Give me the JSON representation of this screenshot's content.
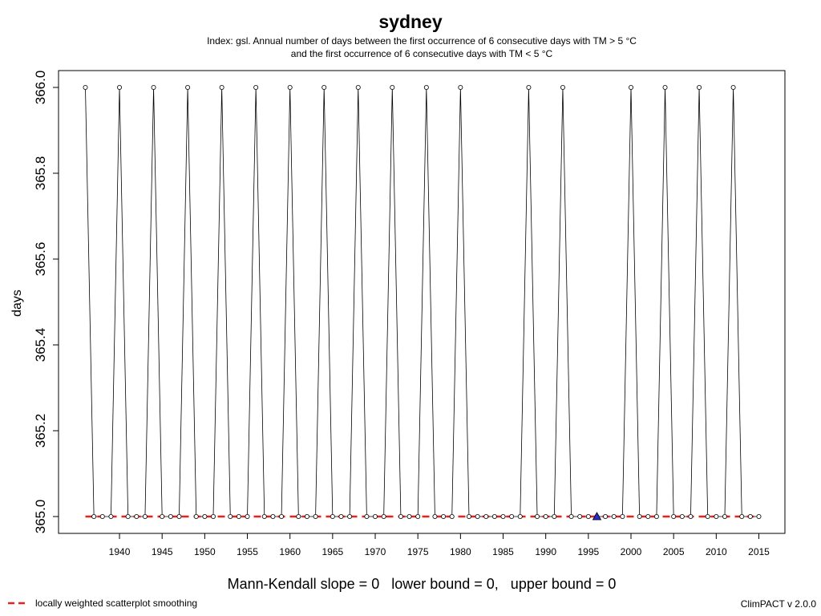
{
  "header": {
    "title": "sydney",
    "subtitle_line1": "Index: gsl. Annual number of days between the first occurrence of 6 consecutive days with TM > 5 °C",
    "subtitle_line2": "and the first occurrence of 6 consecutive days with TM < 5 °C"
  },
  "footer": {
    "stat_text": "Mann-Kendall slope = 0   lower bound = 0,   upper bound = 0",
    "legend_label": "locally weighted scatterplot smoothing",
    "version": "ClimPACT v 2.0.0"
  },
  "colors": {
    "series_line": "#000000",
    "smooth_line": "#e8231d",
    "marker_fill": "#2a2ad0"
  },
  "chart_data": {
    "type": "line",
    "title": "sydney",
    "xlabel": "",
    "ylabel": "days",
    "xlim": [
      1936,
      2015
    ],
    "ylim": [
      365.0,
      366.0
    ],
    "x_ticks": [
      1940,
      1945,
      1950,
      1955,
      1960,
      1965,
      1970,
      1975,
      1980,
      1985,
      1990,
      1995,
      2000,
      2005,
      2010,
      2015
    ],
    "y_ticks": [
      "365.0",
      "365.2",
      "365.4",
      "365.6",
      "365.8",
      "366.0"
    ],
    "grid": false,
    "legend": "bottom-left",
    "series": [
      {
        "name": "gsl",
        "x": [
          1936,
          1937,
          1938,
          1939,
          1940,
          1941,
          1942,
          1943,
          1944,
          1945,
          1946,
          1947,
          1948,
          1949,
          1950,
          1951,
          1952,
          1953,
          1954,
          1955,
          1956,
          1957,
          1958,
          1959,
          1960,
          1961,
          1962,
          1963,
          1964,
          1965,
          1966,
          1967,
          1968,
          1969,
          1970,
          1971,
          1972,
          1973,
          1974,
          1975,
          1976,
          1977,
          1978,
          1979,
          1980,
          1981,
          1982,
          1983,
          1984,
          1985,
          1986,
          1987,
          1988,
          1989,
          1990,
          1991,
          1992,
          1993,
          1994,
          1995,
          1996,
          1997,
          1998,
          1999,
          2000,
          2001,
          2002,
          2003,
          2004,
          2005,
          2006,
          2007,
          2008,
          2009,
          2010,
          2011,
          2012,
          2013,
          2014,
          2015
        ],
        "values": [
          366,
          365,
          365,
          365,
          366,
          365,
          365,
          365,
          366,
          365,
          365,
          365,
          366,
          365,
          365,
          365,
          366,
          365,
          365,
          365,
          366,
          365,
          365,
          365,
          366,
          365,
          365,
          365,
          366,
          365,
          365,
          365,
          366,
          365,
          365,
          365,
          366,
          365,
          365,
          365,
          366,
          365,
          365,
          365,
          366,
          365,
          365,
          365,
          365,
          365,
          365,
          365,
          366,
          365,
          365,
          365,
          366,
          365,
          365,
          365,
          365,
          365,
          365,
          365,
          366,
          365,
          365,
          365,
          366,
          365,
          365,
          365,
          366,
          365,
          365,
          365,
          366,
          365,
          365,
          365
        ]
      },
      {
        "name": "locally weighted scatterplot smoothing",
        "x": [
          1936,
          2015
        ],
        "values": [
          365.0,
          365.0
        ]
      }
    ],
    "highlight_marker": {
      "x": 1996,
      "y": 365.0,
      "shape": "triangle"
    }
  }
}
